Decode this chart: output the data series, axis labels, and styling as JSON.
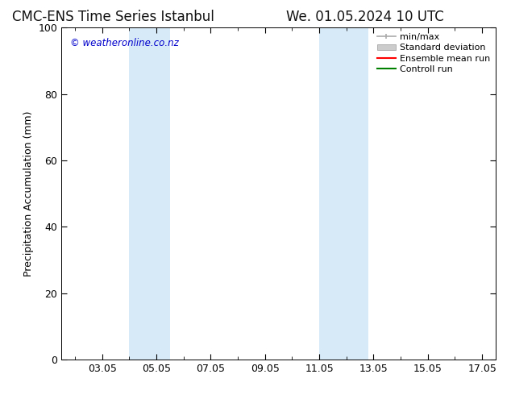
{
  "title_left": "CMC-ENS Time Series Istanbul",
  "title_right": "We. 01.05.2024 10 UTC",
  "ylabel": "Precipitation Accumulation (mm)",
  "watermark": "© weatheronline.co.nz",
  "watermark_color": "#0000cc",
  "ylim": [
    0,
    100
  ],
  "yticks": [
    0,
    20,
    40,
    60,
    80,
    100
  ],
  "xlim": [
    1.5,
    17.5
  ],
  "xtick_labels": [
    "03.05",
    "05.05",
    "07.05",
    "09.05",
    "11.05",
    "13.05",
    "15.05",
    "17.05"
  ],
  "xtick_positions": [
    3.0,
    5.0,
    7.0,
    9.0,
    11.0,
    13.0,
    15.0,
    17.0
  ],
  "shaded_bands": [
    {
      "x_start": 4.0,
      "x_end": 5.5,
      "color": "#d6eaf8"
    },
    {
      "x_start": 11.0,
      "x_end": 12.8,
      "color": "#d6eaf8"
    }
  ],
  "legend_entries": [
    {
      "label": "min/max",
      "color": "#aaaaaa",
      "type": "errorbar"
    },
    {
      "label": "Standard deviation",
      "color": "#cccccc",
      "type": "band"
    },
    {
      "label": "Ensemble mean run",
      "color": "#ff0000",
      "type": "line"
    },
    {
      "label": "Controll run",
      "color": "#008000",
      "type": "line"
    }
  ],
  "bg_color": "#ffffff",
  "plot_bg_color": "#ffffff",
  "border_color": "#000000",
  "tick_color": "#555555",
  "font_size": 9,
  "title_font_size": 12,
  "legend_font_size": 8
}
